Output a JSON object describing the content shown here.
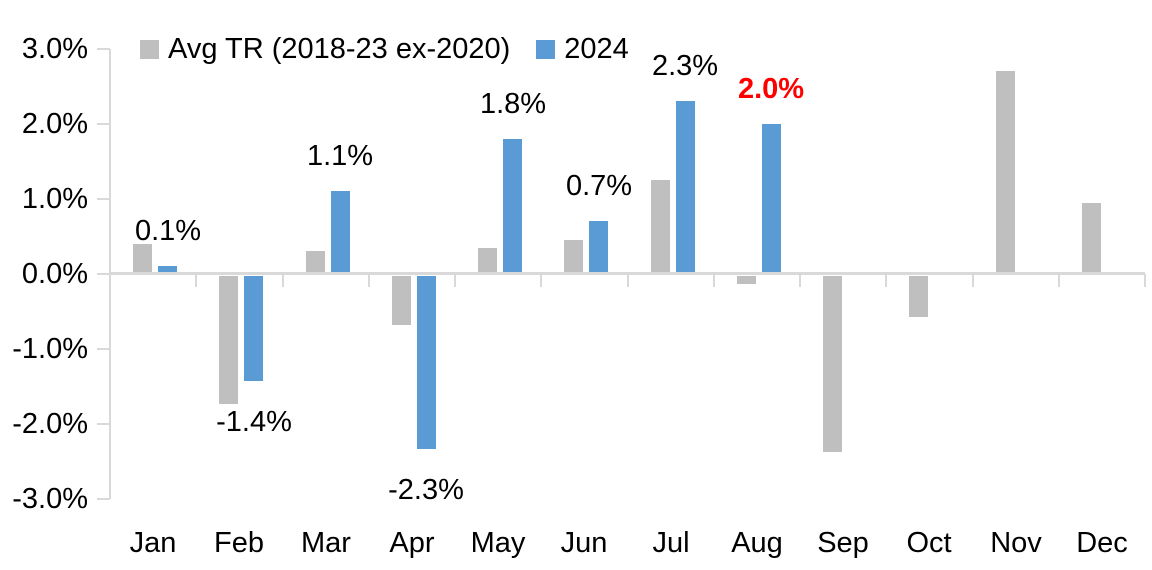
{
  "chart_data": {
    "type": "bar",
    "title": "",
    "xlabel": "",
    "ylabel": "",
    "categories": [
      "Jan",
      "Feb",
      "Mar",
      "Apr",
      "May",
      "Jun",
      "Jul",
      "Aug",
      "Sep",
      "Oct",
      "Nov",
      "Dec"
    ],
    "series": [
      {
        "name": "Avg TR (2018-23 ex-2020)",
        "color": "#BFBFBF",
        "values": [
          0.4,
          -1.7,
          0.3,
          -0.65,
          0.35,
          0.45,
          1.25,
          -0.1,
          -2.35,
          -0.55,
          2.7,
          0.95
        ]
      },
      {
        "name": "2024",
        "color": "#5B9BD5",
        "values": [
          0.1,
          -1.4,
          1.1,
          -2.3,
          1.8,
          0.7,
          2.3,
          2.0
        ],
        "labels": [
          "0.1%",
          "-1.4%",
          "1.1%",
          "-2.3%",
          "1.8%",
          "0.7%",
          "2.3%",
          "2.0%"
        ]
      }
    ],
    "label_highlight": {
      "index": 7,
      "color": "#FF0000",
      "bold": true
    },
    "label_default_color": "#000000",
    "y_ticks": [
      {
        "value": 3.0,
        "label": "3.0%"
      },
      {
        "value": 2.0,
        "label": "2.0%"
      },
      {
        "value": 1.0,
        "label": "1.0%"
      },
      {
        "value": 0.0,
        "label": "0.0%"
      },
      {
        "value": -1.0,
        "label": "-1.0%"
      },
      {
        "value": -2.0,
        "label": "-2.0%"
      },
      {
        "value": -3.0,
        "label": "-3.0%"
      }
    ],
    "ylim": [
      -3.0,
      3.0
    ],
    "grid": false,
    "legend_position": "top"
  }
}
